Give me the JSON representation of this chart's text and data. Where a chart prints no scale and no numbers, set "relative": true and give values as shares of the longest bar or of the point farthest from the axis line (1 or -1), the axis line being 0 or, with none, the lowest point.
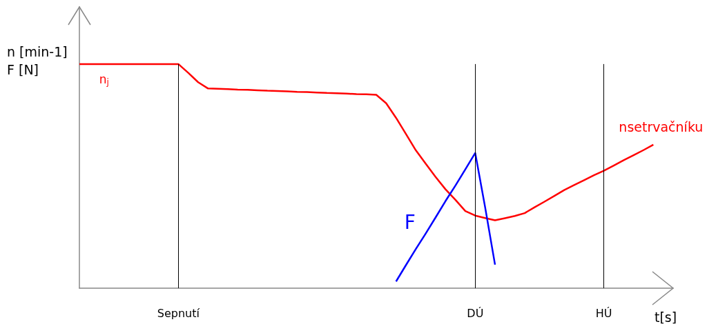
{
  "chart_data": {
    "type": "line",
    "relative": true,
    "ylabel": "n [min-1]\nF [N]",
    "xlabel": "t[s]",
    "categories": [
      null,
      null,
      null,
      null,
      null,
      null,
      null,
      null,
      null,
      null,
      "Sepnutí",
      null,
      null,
      null,
      null,
      null,
      null,
      null,
      null,
      null,
      null,
      null,
      null,
      null,
      null,
      null,
      null,
      null,
      null,
      null,
      null,
      null,
      null,
      null,
      null,
      null,
      null,
      null,
      null,
      null,
      "DÚ",
      null,
      null,
      null,
      null,
      null,
      null,
      null,
      null,
      null,
      null,
      null,
      null,
      "HÚ",
      null,
      null,
      null,
      null,
      null,
      null,
      null
    ],
    "series": [
      {
        "name": "nsetrvačníku",
        "color": "#ff0000",
        "values": [
          1,
          1,
          1,
          1,
          1,
          1,
          1,
          1,
          1,
          1,
          1,
          0.961,
          0.919,
          0.891,
          0.89,
          0.888,
          0.886,
          0.885,
          0.883,
          0.881,
          0.88,
          0.878,
          0.876,
          0.875,
          0.873,
          0.871,
          0.87,
          0.868,
          0.866,
          0.865,
          0.863,
          0.825,
          0.76,
          0.688,
          0.615,
          0.555,
          0.496,
          0.441,
          0.394,
          0.344,
          0.324,
          0.313,
          0.303,
          0.312,
          0.322,
          0.335,
          0.361,
          0.386,
          0.412,
          0.438,
          0.46,
          0.482,
          0.504,
          0.524,
          0.547,
          0.571,
          0.593,
          0.616,
          0.64,
          null,
          null
        ]
      },
      {
        "name": "F",
        "color": "#0000ff",
        "values": [
          null,
          null,
          null,
          null,
          null,
          null,
          null,
          null,
          null,
          null,
          null,
          null,
          null,
          null,
          null,
          null,
          null,
          null,
          null,
          null,
          null,
          null,
          null,
          null,
          null,
          null,
          null,
          null,
          null,
          null,
          null,
          null,
          0.03,
          0.103,
          0.175,
          0.244,
          0.316,
          0.389,
          0.458,
          0.53,
          0.603,
          0.361,
          0.105,
          null,
          null,
          null,
          null,
          null,
          null,
          null,
          null,
          null,
          null,
          null,
          null,
          null,
          null,
          null,
          null,
          null,
          null
        ]
      }
    ],
    "annotations": [
      "n$_{j}$"
    ],
    "ref_lines": [
      {
        "axis": "x",
        "value": "Sepnutí",
        "color": "#000000"
      },
      {
        "axis": "x",
        "value": "DÚ",
        "color": "#000000"
      },
      {
        "axis": "x",
        "value": "HÚ",
        "color": "#000000"
      }
    ],
    "grid": false,
    "legend": false,
    "marker": "none",
    "line_style": "solid"
  }
}
